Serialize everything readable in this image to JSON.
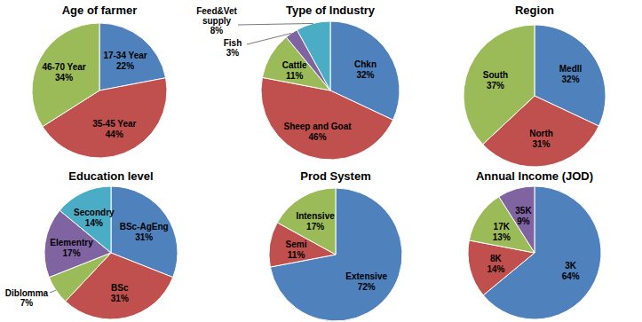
{
  "chart_data": [
    {
      "type": "pie",
      "title": "Age of farmer",
      "categories": [
        "17-34 Year",
        "35-45 Year",
        "46-70 Year"
      ],
      "values": [
        22,
        44,
        34
      ],
      "value_labels": [
        "22%",
        "44%",
        "34%"
      ],
      "colors": [
        "#4f81bd",
        "#c0504d",
        "#9bbb59"
      ],
      "data_labels": true
    },
    {
      "type": "pie",
      "title": "Type of Industry",
      "categories": [
        "Chkn",
        "Sheep and Goat",
        "Cattle",
        "Fish",
        "Feed&Vet supply"
      ],
      "values": [
        32,
        46,
        11,
        3,
        8
      ],
      "value_labels": [
        "32%",
        "46%",
        "11%",
        "3%",
        "8%"
      ],
      "colors": [
        "#4f81bd",
        "#c0504d",
        "#9bbb59",
        "#8064a2",
        "#4bacc6"
      ],
      "data_labels": true
    },
    {
      "type": "pie",
      "title": "Region",
      "categories": [
        "Medll",
        "North",
        "South"
      ],
      "values": [
        32,
        31,
        37
      ],
      "value_labels": [
        "32%",
        "31%",
        "37%"
      ],
      "colors": [
        "#4f81bd",
        "#c0504d",
        "#9bbb59"
      ],
      "data_labels": true
    },
    {
      "type": "pie",
      "title": "Education level",
      "categories": [
        "BSc-AgEng",
        "BSc",
        "Diblomma",
        "Elementry",
        "Secondry"
      ],
      "values": [
        31,
        31,
        7,
        17,
        14
      ],
      "value_labels": [
        "31%",
        "31%",
        "7%",
        "17%",
        "14%"
      ],
      "colors": [
        "#4f81bd",
        "#c0504d",
        "#9bbb59",
        "#8064a2",
        "#4bacc6"
      ],
      "data_labels": true
    },
    {
      "type": "pie",
      "title": "Prod System",
      "categories": [
        "Extensive",
        "Semi",
        "Intensive"
      ],
      "values": [
        72,
        11,
        17
      ],
      "value_labels": [
        "72%",
        "11%",
        "17%"
      ],
      "colors": [
        "#4f81bd",
        "#c0504d",
        "#9bbb59"
      ],
      "data_labels": true
    },
    {
      "type": "pie",
      "title": "Annual Income (JOD)",
      "categories": [
        "3K",
        "8K",
        "17K",
        "35K"
      ],
      "values": [
        64,
        14,
        13,
        9
      ],
      "value_labels": [
        "64%",
        "14%",
        "13%",
        "9%"
      ],
      "colors": [
        "#4f81bd",
        "#c0504d",
        "#9bbb59",
        "#8064a2"
      ],
      "data_labels": true
    }
  ]
}
